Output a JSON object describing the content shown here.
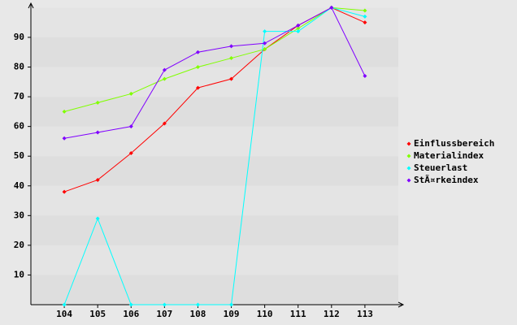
{
  "chart_data": {
    "type": "line",
    "categories": [
      "104",
      "105",
      "106",
      "107",
      "108",
      "109",
      "110",
      "111",
      "112",
      "113"
    ],
    "series": [
      {
        "name": "Einflussbereich",
        "color": "#ff0000",
        "values": [
          38,
          42,
          51,
          61,
          73,
          76,
          86,
          94,
          100,
          95
        ]
      },
      {
        "name": "Materialindex",
        "color": "#80ff00",
        "values": [
          65,
          68,
          71,
          76,
          80,
          83,
          86,
          93,
          100,
          99
        ]
      },
      {
        "name": "Steuerlast",
        "color": "#00ffff",
        "values": [
          0,
          29,
          0,
          0,
          0,
          0,
          92,
          92,
          100,
          97
        ]
      },
      {
        "name": "StÃ¤rkeindex",
        "color": "#8000ff",
        "values": [
          56,
          58,
          60,
          79,
          85,
          87,
          88,
          94,
          100,
          77
        ]
      }
    ],
    "ylim": [
      0,
      100
    ],
    "yticks": [
      10,
      20,
      30,
      40,
      50,
      60,
      70,
      80,
      90
    ],
    "grid": true,
    "legend": "right"
  }
}
